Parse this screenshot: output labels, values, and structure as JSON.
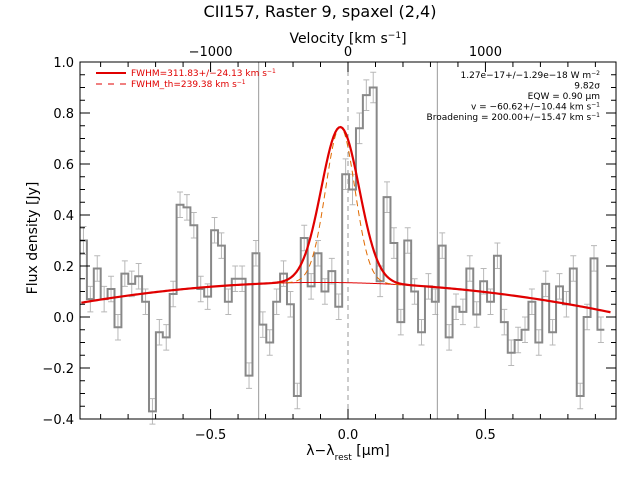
{
  "chart_data": {
    "type": "line",
    "title": "CII157, Raster 9, spaxel (2,4)",
    "xlabel": "λ−λ",
    "xlabel_sub": "rest",
    "xlabel_unit": " [μm]",
    "ylabel": "Flux density [Jy]",
    "top_xlabel": "Velocity [km s",
    "top_xlabel_sup": "−1",
    "top_xlabel_end": "]",
    "xlim": [
      -0.975,
      0.975
    ],
    "ylim": [
      -0.4,
      1.0
    ],
    "x_ticks": [
      -0.5,
      0.0,
      0.5
    ],
    "x_tick_labels": [
      "−0.5",
      "0.0",
      "0.5"
    ],
    "y_ticks": [
      -0.4,
      -0.2,
      0.0,
      0.2,
      0.4,
      0.6,
      0.8,
      1.0
    ],
    "y_tick_labels": [
      "−0.4",
      "−0.2",
      "0.0",
      "0.2",
      "0.4",
      "0.6",
      "0.8",
      "1.0"
    ],
    "top_ticks_x": [
      -0.5,
      0.0,
      0.5
    ],
    "top_tick_labels": [
      "−1000",
      "0",
      "1000"
    ],
    "vlines_x": [
      -0.325,
      0.325
    ],
    "center_line_x": 0.0,
    "legend": [
      {
        "label": "FWHM=311.83+/−24.13 km s",
        "sup": "−1",
        "style": "solid",
        "color": "#e00000"
      },
      {
        "label": "FWHM_th=239.38 km s",
        "sup": "−1",
        "style": "dashed",
        "color": "#e00000"
      }
    ],
    "annotations": [
      {
        "text": "1.27e−17+/−1.29e−18 W m",
        "sup": "−2"
      },
      {
        "text": "9.82σ",
        "sup": ""
      },
      {
        "text": "EQW = 0.90 μm",
        "sup": ""
      },
      {
        "text": "v = −60.62+/−10.44 km s",
        "sup": "−1"
      },
      {
        "text": "Broadening = 200.00+/−15.47 km s",
        "sup": "−1"
      }
    ],
    "fit": {
      "continuum_a": 0.1355,
      "continuum_c": -0.105,
      "continuum_center": -0.1,
      "amplitude": 0.61,
      "center": -0.028,
      "sigma": 0.069,
      "theoretical_sigma": 0.053,
      "colors": {
        "fit": "#e00000",
        "theoretical": "#e06a00",
        "data": "#888888",
        "error": "#b8b8b8",
        "vline": "#999999"
      }
    },
    "series": [
      {
        "x_start": -0.975,
        "x_step": 0.0251,
        "values": [
          0.3,
          0.07,
          0.19,
          0.07,
          0.11,
          -0.04,
          0.17,
          0.13,
          0.16,
          0.06,
          -0.37,
          -0.06,
          -0.08,
          0.09,
          0.44,
          0.43,
          0.36,
          0.11,
          0.08,
          0.34,
          0.28,
          0.06,
          0.15,
          0.15,
          -0.23,
          0.25,
          -0.03,
          -0.1,
          0.06,
          0.17,
          0.05,
          -0.31,
          0.31,
          0.12,
          0.25,
          0.1,
          0.18,
          0.04,
          0.56,
          0.5,
          0.74,
          0.87,
          0.9,
          0.14,
          0.47,
          0.29,
          -0.02,
          0.3,
          0.1,
          -0.06,
          0.12,
          0.06,
          0.28,
          -0.08,
          0.04,
          0.02,
          0.19,
          0.01,
          0.14,
          0.06,
          0.24,
          -0.02,
          -0.14,
          -0.09,
          -0.05,
          0.06,
          -0.1,
          0.13,
          -0.06,
          0.12,
          0.05,
          0.19,
          -0.31,
          0.0,
          0.23,
          -0.05
        ],
        "errors": [
          0.055,
          0.05,
          0.05,
          0.05,
          0.05,
          0.05,
          0.05,
          0.05,
          0.05,
          0.05,
          0.05,
          0.05,
          0.05,
          0.05,
          0.05,
          0.05,
          0.05,
          0.05,
          0.05,
          0.05,
          0.05,
          0.05,
          0.05,
          0.05,
          0.05,
          0.05,
          0.05,
          0.05,
          0.05,
          0.05,
          0.05,
          0.05,
          0.05,
          0.05,
          0.05,
          0.05,
          0.05,
          0.05,
          0.06,
          0.06,
          0.06,
          0.06,
          0.06,
          0.06,
          0.06,
          0.06,
          0.05,
          0.05,
          0.05,
          0.05,
          0.05,
          0.05,
          0.05,
          0.05,
          0.05,
          0.05,
          0.05,
          0.05,
          0.05,
          0.05,
          0.05,
          0.05,
          0.05,
          0.05,
          0.05,
          0.05,
          0.05,
          0.05,
          0.05,
          0.05,
          0.05,
          0.05,
          0.05,
          0.05,
          0.05,
          0.05
        ]
      }
    ]
  }
}
